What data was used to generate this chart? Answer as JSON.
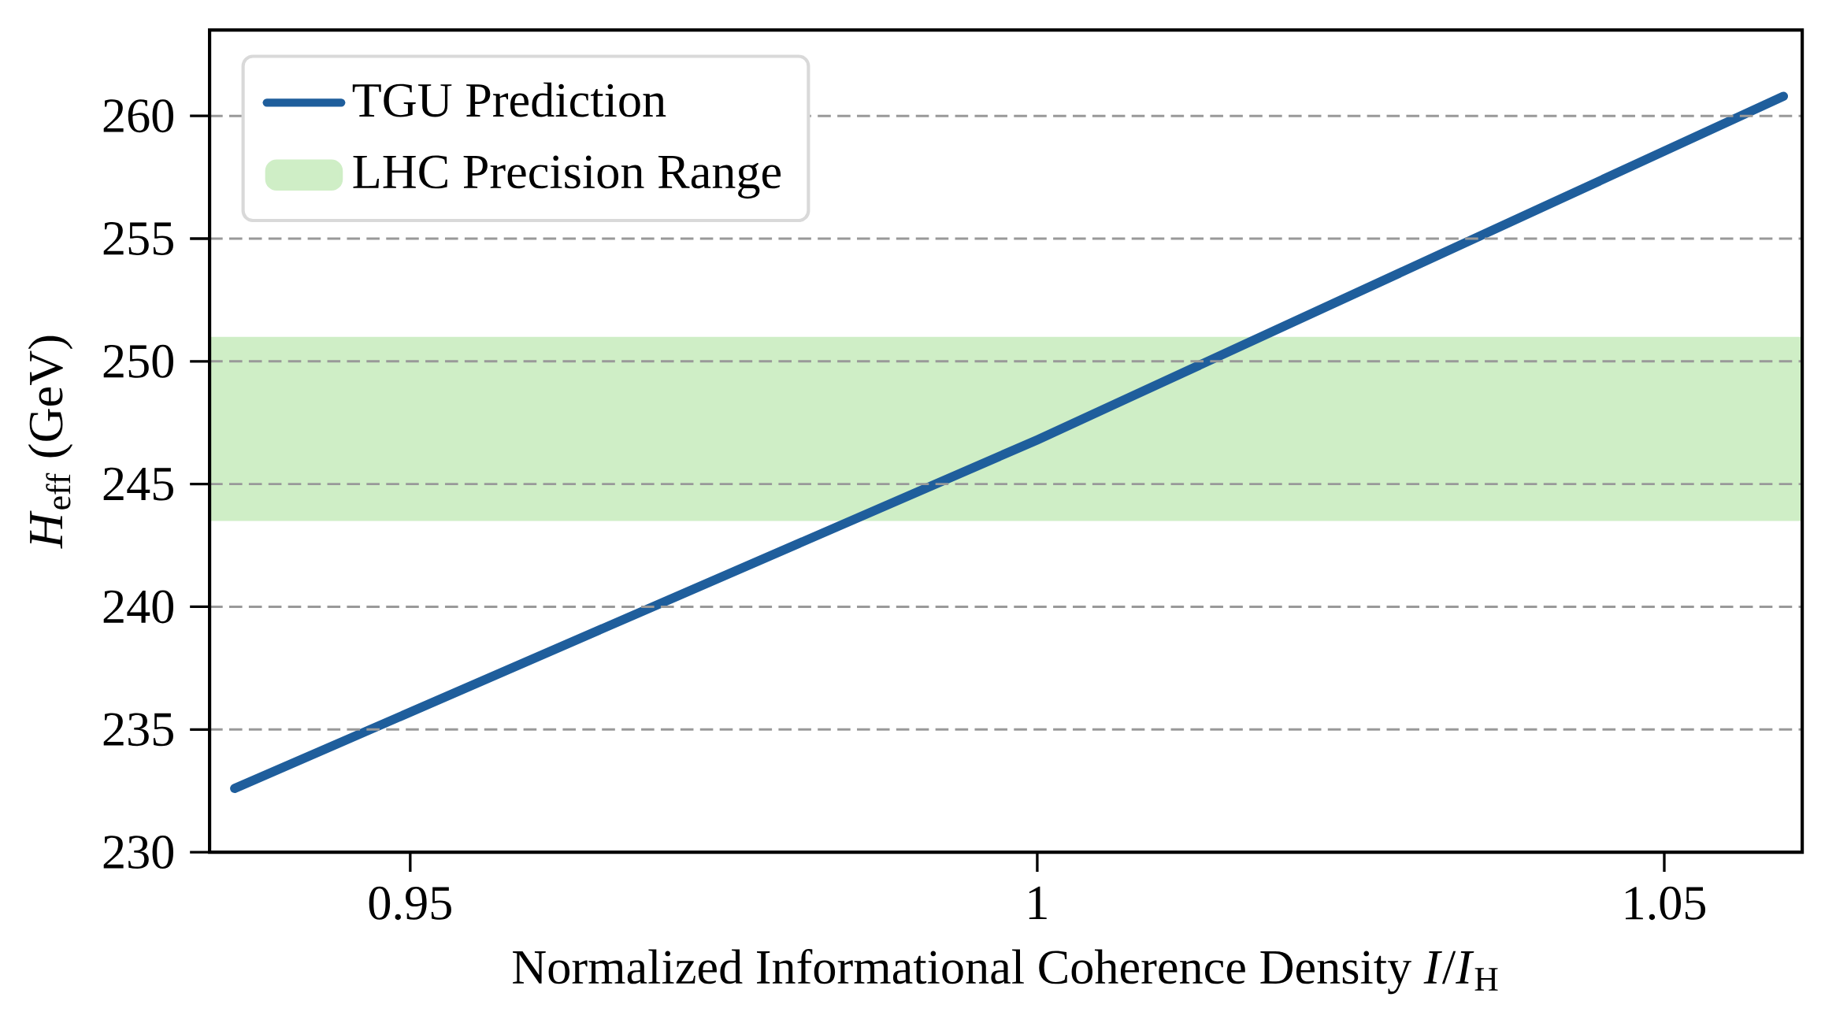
{
  "chart_data": {
    "type": "line",
    "xlabel": "Normalized Informational Coherence Density *I*/*I*$_{H}$",
    "ylabel": "*H*$_{eff}$ (GeV)",
    "x": [
      0.936,
      1.0,
      1.0595
    ],
    "series": [
      {
        "name": "TGU Prediction",
        "color": "#1f5e9c",
        "values": [
          232.6,
          246.8,
          260.8
        ]
      }
    ],
    "bands": [
      {
        "axis": "y",
        "from": 243.5,
        "to": 251.0,
        "label": "LHC Precision Range",
        "color": "#cfeec6"
      }
    ],
    "xlim": [
      0.934,
      1.061
    ],
    "ylim": [
      230,
      263.5
    ],
    "xticks": [
      0.95,
      1,
      1.05
    ],
    "yticks": [
      230,
      235,
      240,
      245,
      250,
      255,
      260
    ],
    "grid": "y",
    "legend": "top left",
    "marker": "none",
    "line_style": "solid"
  }
}
